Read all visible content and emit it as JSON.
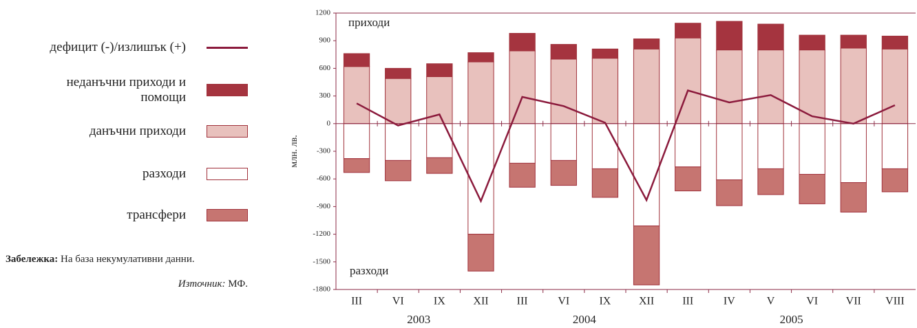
{
  "chart_data": {
    "type": "bar_line",
    "y_label": "млн. лв.",
    "annotations": [
      "приходи",
      "разходи"
    ],
    "note_label": "Забележка:",
    "note": "На база некумулативни данни.",
    "source_label": "Източник:",
    "source": "МФ.",
    "categories": [
      "III",
      "VI",
      "IX",
      "XII",
      "III",
      "VI",
      "IX",
      "XII",
      "III",
      "IV",
      "V",
      "VI",
      "VII",
      "VIII"
    ],
    "year_labels": [
      "2003",
      "2004",
      "2005"
    ],
    "ylim": [
      -1800,
      1200
    ],
    "yticks": [
      -1800,
      -1500,
      -1200,
      -900,
      -600,
      -300,
      0,
      300,
      600,
      900,
      1200
    ],
    "series": [
      {
        "name": "данъчни приходи",
        "color": "#e8c1bd",
        "values": [
          620,
          490,
          510,
          670,
          790,
          700,
          710,
          810,
          930,
          800,
          800,
          800,
          820,
          810
        ]
      },
      {
        "name": "неданъчни приходи и помощи",
        "color": "#a5343f",
        "values": [
          140,
          110,
          140,
          100,
          190,
          160,
          100,
          110,
          160,
          310,
          280,
          160,
          140,
          140
        ]
      },
      {
        "name": "разходи",
        "color": "#ffffff",
        "values": [
          -380,
          -400,
          -370,
          -1200,
          -430,
          -400,
          -490,
          -1110,
          -470,
          -610,
          -490,
          -550,
          -640,
          -490
        ]
      },
      {
        "name": "трансфери",
        "color": "#c67571",
        "values": [
          -150,
          -220,
          -170,
          -400,
          -260,
          -270,
          -310,
          -640,
          -260,
          -280,
          -280,
          -320,
          -320,
          -250
        ]
      },
      {
        "name": "дефицит (-)/излишък (+)",
        "color": "#8b1a3c",
        "values": [
          220,
          -20,
          100,
          -840,
          290,
          190,
          10,
          -830,
          360,
          230,
          310,
          80,
          0,
          200
        ]
      }
    ]
  }
}
